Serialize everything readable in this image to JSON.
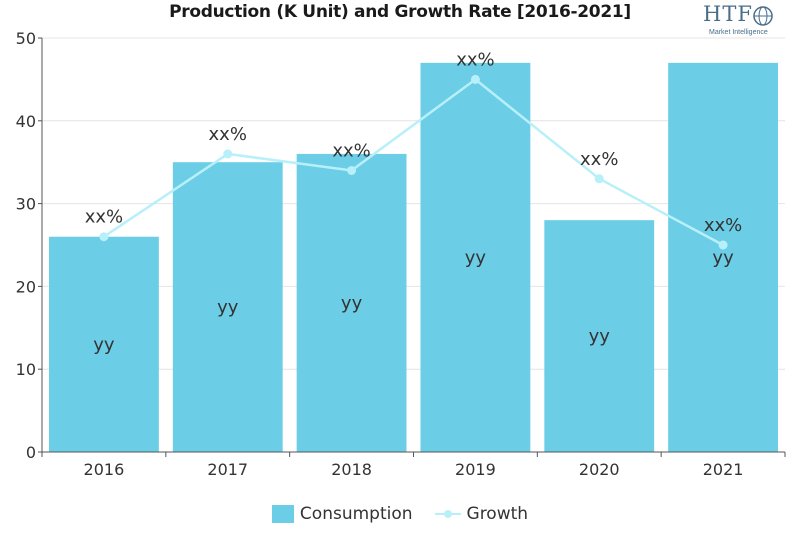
{
  "chart_data": {
    "type": "bar",
    "title": "Production (K Unit) and Growth Rate [2016-2021]",
    "categories": [
      "2016",
      "2017",
      "2018",
      "2019",
      "2020",
      "2021"
    ],
    "series": [
      {
        "name": "Consumption",
        "type": "bar",
        "values": [
          26,
          35,
          36,
          47,
          28,
          47
        ],
        "labels": [
          "yy",
          "yy",
          "yy",
          "yy",
          "yy",
          "yy"
        ]
      },
      {
        "name": "Growth",
        "type": "line",
        "values": [
          26,
          36,
          34,
          45,
          33,
          25
        ],
        "labels": [
          "xx%",
          "xx%",
          "xx%",
          "xx%",
          "xx%",
          "xx%"
        ]
      }
    ],
    "ylim": [
      0,
      50
    ],
    "yticks": [
      "0",
      "10",
      "20",
      "30",
      "40",
      "50"
    ],
    "grid": "horizontal",
    "legend": "bottom-center",
    "colors": {
      "bar": "#6ccde6",
      "line": "#b8f0fa"
    }
  },
  "logo": {
    "main": "HTF",
    "sub": "Market Intelligence"
  }
}
